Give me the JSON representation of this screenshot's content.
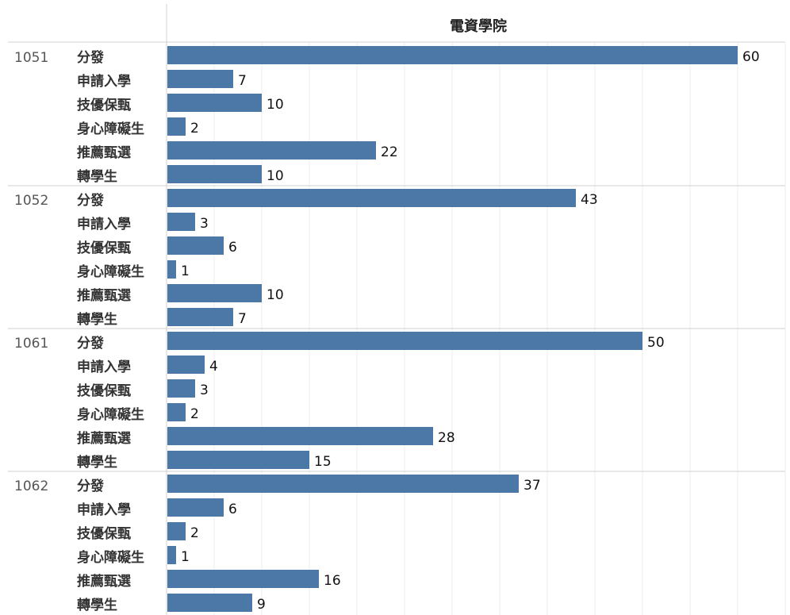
{
  "header": {
    "title": "電資學院"
  },
  "colors": {
    "bar": "#4c78a8",
    "grid": "#eeeeee",
    "divider": "#d0d0d0"
  },
  "chart_data": {
    "type": "bar",
    "orientation": "horizontal",
    "title": "電資學院",
    "xlim": [
      0,
      65
    ],
    "grid": true,
    "groups": [
      {
        "name": "1051",
        "categories": [
          "分發",
          "申請入學",
          "技優保甄",
          "身心障礙生",
          "推薦甄選",
          "轉學生"
        ],
        "values": [
          60,
          7,
          10,
          2,
          22,
          10
        ]
      },
      {
        "name": "1052",
        "categories": [
          "分發",
          "申請入學",
          "技優保甄",
          "身心障礙生",
          "推薦甄選",
          "轉學生"
        ],
        "values": [
          43,
          3,
          6,
          1,
          10,
          7
        ]
      },
      {
        "name": "1061",
        "categories": [
          "分發",
          "申請入學",
          "技優保甄",
          "身心障礙生",
          "推薦甄選",
          "轉學生"
        ],
        "values": [
          50,
          4,
          3,
          2,
          28,
          15
        ]
      },
      {
        "name": "1062",
        "categories": [
          "分發",
          "申請入學",
          "技優保甄",
          "身心障礙生",
          "推薦甄選",
          "轉學生"
        ],
        "values": [
          37,
          6,
          2,
          1,
          16,
          9
        ]
      }
    ]
  }
}
